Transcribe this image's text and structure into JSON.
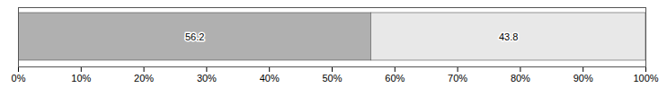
{
  "chart_data": {
    "type": "bar",
    "orientation": "horizontal",
    "stacked": true,
    "categories": [
      null
    ],
    "series": [
      {
        "color": "#b0b0b0",
        "values": [
          56.2
        ]
      },
      {
        "color": "#e8e8e8",
        "values": [
          43.8
        ]
      }
    ],
    "xlim": [
      0,
      100
    ],
    "xticks": [
      {
        "value": 0,
        "label": "0%"
      },
      {
        "value": 10,
        "label": "10%"
      },
      {
        "value": 20,
        "label": "20%"
      },
      {
        "value": 30,
        "label": "30%"
      },
      {
        "value": 40,
        "label": "40%"
      },
      {
        "value": 50,
        "label": "50%"
      },
      {
        "value": 60,
        "label": "60%"
      },
      {
        "value": 70,
        "label": "70%"
      },
      {
        "value": 80,
        "label": "80%"
      },
      {
        "value": 90,
        "label": "90%"
      },
      {
        "value": 100,
        "label": "100%"
      }
    ],
    "data_labels": true,
    "tick_labels": "x"
  }
}
